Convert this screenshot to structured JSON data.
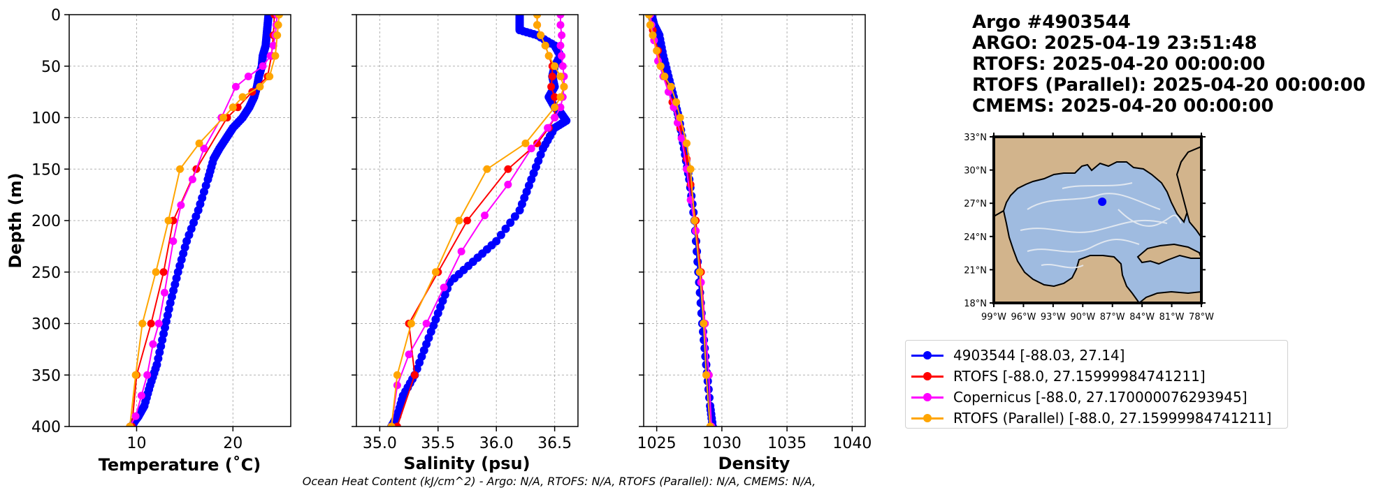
{
  "header": {
    "lines": [
      "Argo #4903544",
      "ARGO:  2025-04-19 23:51:48",
      "RTOFS: 2025-04-20 00:00:00",
      "RTOFS (Parallel): 2025-04-20 00:00:00",
      "CMEMS: 2025-04-20 00:00:00"
    ]
  },
  "footer": {
    "ohc": "Ocean Heat Content (kJ/cm^2) - Argo: N/A,  RTOFS: N/A,  RTOFS (Parallel): N/A,  CMEMS: N/A,"
  },
  "legend": {
    "items": [
      {
        "label": "4903544 [-88.03, 27.14]",
        "color": "#0000ff"
      },
      {
        "label": "RTOFS [-88.0, 27.15999984741211]",
        "color": "#ff0000"
      },
      {
        "label": "Copernicus [-88.0, 27.170000076293945]",
        "color": "#ff00ff"
      },
      {
        "label": "RTOFS (Parallel) [-88.0, 27.15999984741211]",
        "color": "#ffa500"
      }
    ]
  },
  "colors": {
    "argo": "#0000ff",
    "rtofs": "#ff0000",
    "copernicus": "#ff00ff",
    "parallel": "#ffa500",
    "land": "#d2b48c",
    "ocean": "#9fbbe0",
    "grid": "#b0b0b0"
  },
  "chart_data": [
    {
      "type": "line",
      "xlabel": "Temperature (˚C)",
      "ylabel": "Depth (m)",
      "xlim": [
        3,
        26
      ],
      "ylim": [
        400,
        0
      ],
      "xticks": [
        10,
        20
      ],
      "yticks": [
        0,
        50,
        100,
        150,
        200,
        250,
        300,
        350,
        400
      ],
      "grid": true,
      "y_inverted": true,
      "series": [
        {
          "name": "4903544 [-88.03, 27.14]",
          "key": "argo",
          "x": [
            23.7,
            23.6,
            23.5,
            23.4,
            23.1,
            23.0,
            22.7,
            22.5,
            22.2,
            21.7,
            21.0,
            20.0,
            19.3,
            18.6,
            18.0,
            17.4,
            16.4,
            15.2,
            14.3,
            13.5,
            12.8,
            12.1,
            11.4,
            10.8,
            10.2,
            9.8,
            9.5
          ],
          "y": [
            0,
            10,
            20,
            30,
            40,
            50,
            60,
            70,
            80,
            90,
            100,
            110,
            120,
            130,
            140,
            160,
            190,
            220,
            250,
            280,
            310,
            340,
            360,
            380,
            390,
            395,
            400
          ]
        },
        {
          "name": "RTOFS [-88.0, 27.15999984741211]",
          "key": "rtofs",
          "x": [
            24.3,
            24.2,
            24.0,
            23.6,
            22.0,
            20.5,
            19.4,
            16.2,
            13.8,
            12.8,
            11.5,
            10.0,
            9.5
          ],
          "y": [
            0,
            20,
            40,
            60,
            75,
            90,
            100,
            150,
            200,
            250,
            300,
            350,
            400
          ]
        },
        {
          "name": "Copernicus [-88.0, 27.170000076293945]",
          "key": "copernicus",
          "x": [
            24.6,
            24.5,
            24.4,
            24.2,
            23.9,
            23.1,
            21.6,
            20.3,
            18.8,
            17.0,
            15.8,
            14.6,
            13.8,
            12.9,
            12.3,
            11.7,
            11.1,
            10.5,
            9.9,
            9.3
          ],
          "y": [
            0,
            10,
            20,
            30,
            40,
            50,
            60,
            70,
            100,
            130,
            160,
            185,
            220,
            270,
            300,
            320,
            350,
            370,
            390,
            400
          ]
        },
        {
          "name": "RTOFS (Parallel) [-88.0, 27.15999984741211]",
          "key": "parallel",
          "x": [
            24.8,
            24.7,
            24.6,
            24.4,
            23.8,
            22.8,
            21.0,
            20.0,
            19.0,
            16.5,
            14.5,
            13.3,
            12.0,
            10.6,
            9.9,
            9.3
          ],
          "y": [
            0,
            10,
            20,
            40,
            60,
            70,
            80,
            90,
            100,
            125,
            150,
            200,
            250,
            300,
            350,
            400
          ]
        }
      ]
    },
    {
      "type": "line",
      "xlabel": "Salinity (psu)",
      "ylabel": "",
      "xlim": [
        34.8,
        36.7
      ],
      "ylim": [
        400,
        0
      ],
      "xticks": [
        35.0,
        35.5,
        36.0,
        36.5
      ],
      "yticks": [
        0,
        50,
        100,
        150,
        200,
        250,
        300,
        350,
        400
      ],
      "grid": true,
      "y_inverted": true,
      "series": [
        {
          "name": "4903544 [-88.03, 27.14]",
          "key": "argo",
          "x": [
            36.2,
            36.2,
            36.2,
            36.2,
            36.35,
            36.5,
            36.55,
            36.5,
            36.48,
            36.5,
            36.45,
            36.5,
            36.55,
            36.6,
            36.5,
            36.4,
            36.3,
            36.2,
            36.0,
            35.8,
            35.6,
            35.5,
            35.4,
            35.3,
            35.2,
            35.15,
            35.1
          ],
          "y": [
            0,
            5,
            10,
            15,
            20,
            30,
            40,
            50,
            60,
            70,
            80,
            90,
            95,
            103,
            110,
            130,
            160,
            190,
            220,
            240,
            260,
            290,
            320,
            350,
            370,
            390,
            400
          ]
        },
        {
          "name": "RTOFS [-88.0, 27.15999984741211]",
          "key": "rtofs",
          "x": [
            36.35,
            36.35,
            36.38,
            36.42,
            36.45,
            36.48,
            36.48,
            36.47,
            36.5,
            36.5,
            36.45,
            36.35,
            36.1,
            35.75,
            35.5,
            35.25,
            35.3,
            35.15
          ],
          "y": [
            0,
            10,
            20,
            30,
            40,
            50,
            60,
            70,
            80,
            100,
            110,
            125,
            150,
            200,
            250,
            300,
            350,
            400
          ]
        },
        {
          "name": "Copernicus [-88.0, 27.170000076293945]",
          "key": "copernicus",
          "x": [
            36.55,
            36.55,
            36.56,
            36.55,
            36.56,
            36.57,
            36.58,
            36.58,
            36.57,
            36.55,
            36.5,
            36.44,
            36.3,
            36.1,
            35.9,
            35.7,
            35.55,
            35.4,
            35.25,
            35.15,
            35.1
          ],
          "y": [
            0,
            10,
            20,
            30,
            40,
            50,
            60,
            70,
            80,
            90,
            100,
            110,
            130,
            165,
            195,
            230,
            265,
            300,
            330,
            360,
            400
          ]
        },
        {
          "name": "RTOFS (Parallel) [-88.0, 27.15999984741211]",
          "key": "parallel",
          "x": [
            36.35,
            36.35,
            36.38,
            36.42,
            36.45,
            36.5,
            36.55,
            36.58,
            36.55,
            36.5,
            36.25,
            35.92,
            35.68,
            35.48,
            35.27,
            35.15,
            35.1
          ],
          "y": [
            0,
            10,
            20,
            30,
            40,
            50,
            60,
            70,
            80,
            90,
            125,
            150,
            200,
            250,
            300,
            350,
            400
          ]
        }
      ]
    },
    {
      "type": "line",
      "xlabel": "Density",
      "ylabel": "",
      "xlim": [
        1024,
        1041
      ],
      "ylim": [
        400,
        0
      ],
      "xticks": [
        1025,
        1030,
        1035,
        1040
      ],
      "yticks": [
        0,
        50,
        100,
        150,
        200,
        250,
        300,
        350,
        400
      ],
      "grid": true,
      "y_inverted": true,
      "series": [
        {
          "name": "4903544 [-88.03, 27.14]",
          "key": "argo",
          "x": [
            1024.6,
            1024.8,
            1025.2,
            1025.5,
            1025.9,
            1026.3,
            1026.7,
            1027.1,
            1027.5,
            1027.9,
            1028.2,
            1028.5,
            1028.8,
            1029.1,
            1029.3
          ],
          "y": [
            0,
            10,
            20,
            40,
            60,
            80,
            100,
            130,
            160,
            200,
            250,
            300,
            340,
            380,
            400
          ]
        },
        {
          "name": "RTOFS [-88.0, 27.15999984741211]",
          "key": "rtofs",
          "x": [
            1024.5,
            1024.7,
            1025.1,
            1025.6,
            1026.2,
            1026.8,
            1027.3,
            1027.6,
            1028.0,
            1028.4,
            1028.7,
            1029.0,
            1029.2
          ],
          "y": [
            0,
            15,
            35,
            60,
            85,
            110,
            140,
            165,
            200,
            250,
            300,
            350,
            400
          ]
        },
        {
          "name": "Copernicus [-88.0, 27.170000076293945]",
          "key": "copernicus",
          "x": [
            1024.5,
            1024.6,
            1024.8,
            1025.1,
            1025.5,
            1025.9,
            1026.3,
            1026.6,
            1026.9,
            1027.3,
            1027.6,
            1028.0,
            1028.4,
            1028.7,
            1029.0,
            1029.2
          ],
          "y": [
            0,
            10,
            25,
            45,
            60,
            75,
            90,
            105,
            120,
            150,
            180,
            210,
            260,
            300,
            350,
            400
          ]
        },
        {
          "name": "RTOFS (Parallel) [-88.0, 27.15999984741211]",
          "key": "parallel",
          "x": [
            1024.4,
            1024.5,
            1024.7,
            1025.0,
            1025.3,
            1025.6,
            1026.1,
            1026.5,
            1026.8,
            1027.3,
            1027.6,
            1027.9,
            1028.3,
            1028.6,
            1028.8,
            1029.1
          ],
          "y": [
            0,
            10,
            20,
            35,
            50,
            60,
            70,
            85,
            100,
            125,
            150,
            200,
            250,
            300,
            350,
            400
          ]
        }
      ]
    }
  ],
  "map": {
    "lat_ticks": [
      "33°N",
      "30°N",
      "27°N",
      "24°N",
      "21°N",
      "18°N"
    ],
    "lon_ticks": [
      "99°W",
      "96°W",
      "93°W",
      "90°W",
      "87°W",
      "84°W",
      "81°W",
      "78°W"
    ],
    "lat_range": [
      18,
      33
    ],
    "lon_range": [
      -99,
      -78
    ],
    "float_position": {
      "lon": -88.03,
      "lat": 27.14
    }
  }
}
